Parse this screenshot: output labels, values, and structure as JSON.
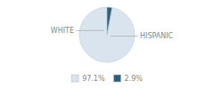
{
  "chart_data": {
    "type": "pie",
    "categories": [
      "WHITE",
      "HISPANIC"
    ],
    "values": [
      97.1,
      2.9
    ],
    "value_labels": [
      "97.1%",
      "2.9%"
    ],
    "colors": [
      "#d9e4ee",
      "#2e5f7a"
    ],
    "legend": "bottom"
  }
}
